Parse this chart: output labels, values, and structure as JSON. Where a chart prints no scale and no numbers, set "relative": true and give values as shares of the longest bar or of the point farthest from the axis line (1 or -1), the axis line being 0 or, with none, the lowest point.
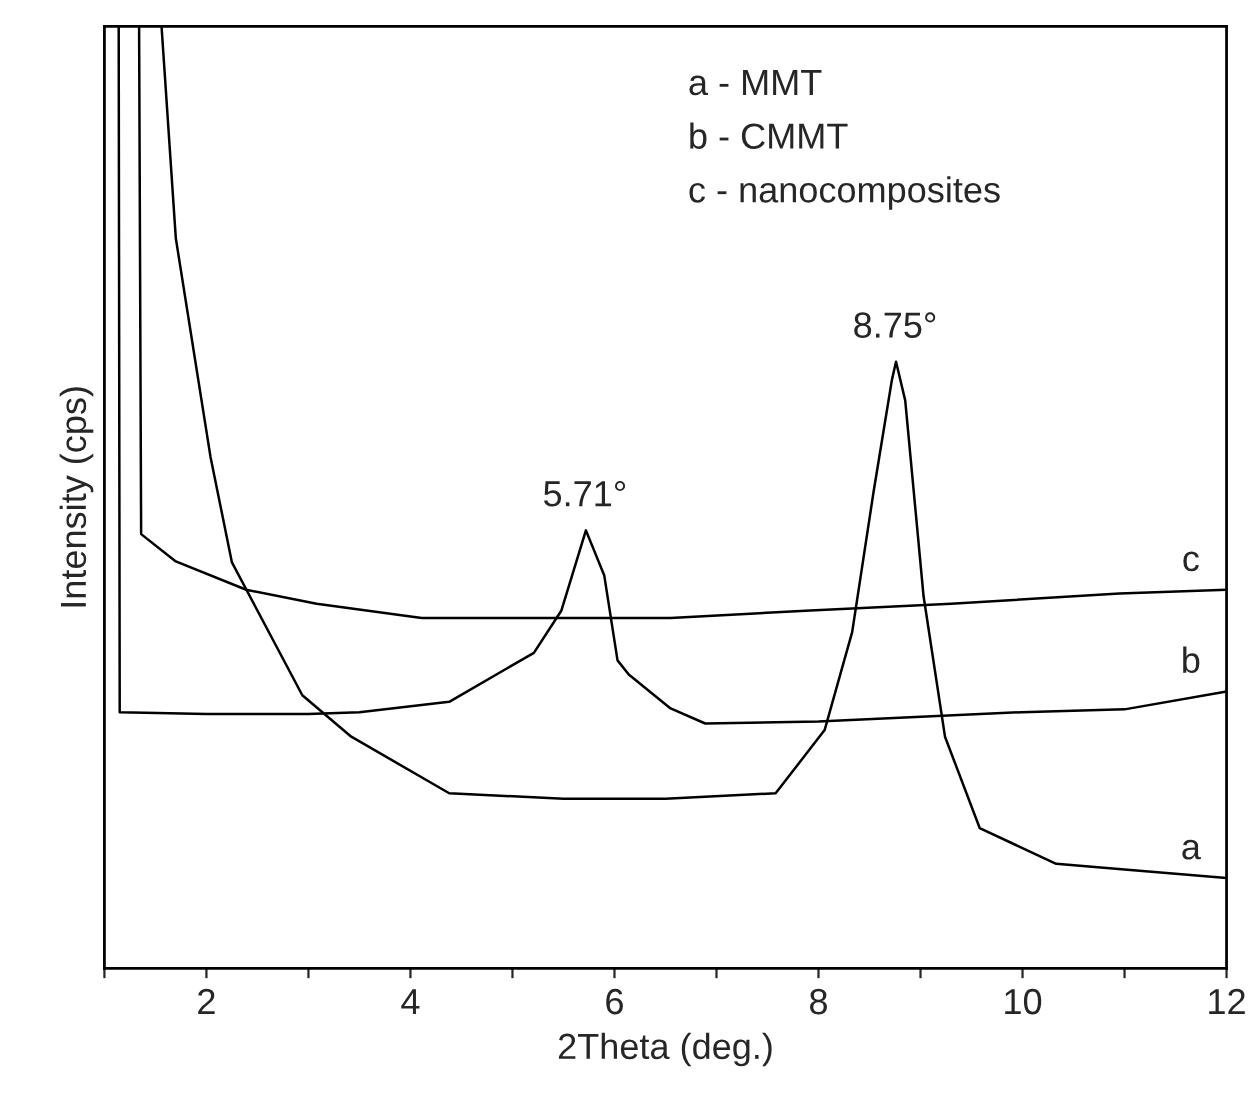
{
  "chart_data": {
    "type": "line",
    "relative": true,
    "xlabel": "2Theta (deg.)",
    "ylabel": "Intensity (cps)",
    "xlim": [
      1,
      12
    ],
    "xticks": [
      {
        "value": 1,
        "label": null
      },
      2,
      {
        "value": 3,
        "label": null
      },
      4,
      {
        "value": 5,
        "label": null
      },
      6,
      {
        "value": 7,
        "label": null
      },
      8,
      {
        "value": 9,
        "label": null
      },
      10,
      {
        "value": 11,
        "label": null
      },
      12
    ],
    "tick_labels": "x",
    "grid": false,
    "legend": false,
    "marker": "none",
    "line_style": "solid",
    "series": [
      {
        "name": "a",
        "color": "#000000",
        "x": [
          1.56,
          1.7,
          2.04,
          2.25,
          2.94,
          3.42,
          4.38,
          5.5,
          6.5,
          7.58,
          8.06,
          8.33,
          8.54,
          8.72,
          8.76,
          8.85,
          9.03,
          9.24,
          9.58,
          10.33,
          11.0,
          12.0
        ],
        "values": [
          1.0,
          0.775,
          0.543,
          0.431,
          0.29,
          0.246,
          0.186,
          0.18,
          0.18,
          0.186,
          0.253,
          0.357,
          0.506,
          0.625,
          0.644,
          0.603,
          0.395,
          0.246,
          0.149,
          0.111,
          0.105,
          0.096
        ]
      },
      {
        "name": "b",
        "color": "#000000",
        "x": [
          1.14,
          1.15,
          2.0,
          3.0,
          3.5,
          4.38,
          5.21,
          5.48,
          5.72,
          5.9,
          6.03,
          6.14,
          6.55,
          6.89,
          8.0,
          9.99,
          11.0,
          12.0
        ],
        "values": [
          1.0,
          0.272,
          0.27,
          0.27,
          0.272,
          0.283,
          0.335,
          0.38,
          0.465,
          0.417,
          0.327,
          0.312,
          0.276,
          0.26,
          0.262,
          0.272,
          0.275,
          0.294
        ]
      },
      {
        "name": "c",
        "color": "#000000",
        "x": [
          1.34,
          1.36,
          1.7,
          2.39,
          3.08,
          4.11,
          5.53,
          6.55,
          7.92,
          9.3,
          10.95,
          12.0
        ],
        "values": [
          1.0,
          0.461,
          0.432,
          0.402,
          0.387,
          0.372,
          0.372,
          0.372,
          0.38,
          0.387,
          0.398,
          0.402
        ]
      }
    ],
    "annotations": [
      {
        "text": "5.71°",
        "x": 5.71,
        "y": 0.465
      },
      {
        "text": "8.75°",
        "x": 8.75,
        "y": 0.644
      },
      "a - MMT",
      "b - CMMT",
      "c - nanocomposites"
    ]
  }
}
